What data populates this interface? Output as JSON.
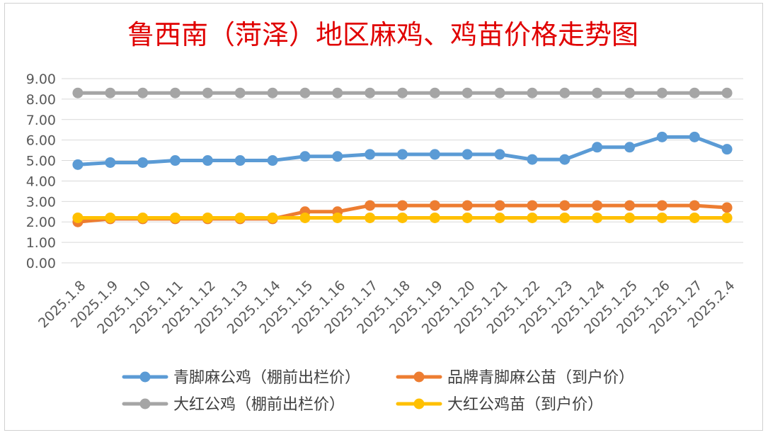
{
  "chart_data": {
    "type": "line",
    "title": "鲁西南（菏泽）地区麻鸡、鸡苗价格走势图",
    "xlabel": "",
    "ylabel": "",
    "ylim": [
      0,
      9
    ],
    "yticks": [
      "0.00",
      "1.00",
      "2.00",
      "3.00",
      "4.00",
      "5.00",
      "6.00",
      "7.00",
      "8.00",
      "9.00"
    ],
    "categories": [
      "2025.1.8",
      "2025.1.9",
      "2025.1.10",
      "2025.1.11",
      "2025.1.12",
      "2025.1.13",
      "2025.1.14",
      "2025.1.15",
      "2025.1.16",
      "2025.1.17",
      "2025.1.18",
      "2025.1.19",
      "2025.1.20",
      "2025.1.21",
      "2025.1.22",
      "2025.1.23",
      "2025.1.24",
      "2025.1.25",
      "2025.1.26",
      "2025.1.27",
      "2025.2.4"
    ],
    "grid": true,
    "legend_position": "bottom",
    "series": [
      {
        "name": "青脚麻公鸡（棚前出栏价）",
        "color": "#5B9BD5",
        "values": [
          4.8,
          4.9,
          4.9,
          5.0,
          5.0,
          5.0,
          5.0,
          5.2,
          5.2,
          5.3,
          5.3,
          5.3,
          5.3,
          5.3,
          5.05,
          5.05,
          5.65,
          5.65,
          6.15,
          6.15,
          5.55
        ]
      },
      {
        "name": "品牌青脚麻公苗（到户价）",
        "color": "#ED7D31",
        "values": [
          2.0,
          2.15,
          2.15,
          2.15,
          2.15,
          2.15,
          2.15,
          2.5,
          2.5,
          2.8,
          2.8,
          2.8,
          2.8,
          2.8,
          2.8,
          2.8,
          2.8,
          2.8,
          2.8,
          2.8,
          2.7
        ]
      },
      {
        "name": "大红公鸡（棚前出栏价）",
        "color": "#A5A5A5",
        "values": [
          8.3,
          8.3,
          8.3,
          8.3,
          8.3,
          8.3,
          8.3,
          8.3,
          8.3,
          8.3,
          8.3,
          8.3,
          8.3,
          8.3,
          8.3,
          8.3,
          8.3,
          8.3,
          8.3,
          8.3,
          8.3
        ]
      },
      {
        "name": "大红公鸡苗（到户价）",
        "color": "#FFC000",
        "values": [
          2.2,
          2.2,
          2.2,
          2.2,
          2.2,
          2.2,
          2.2,
          2.2,
          2.2,
          2.2,
          2.2,
          2.2,
          2.2,
          2.2,
          2.2,
          2.2,
          2.2,
          2.2,
          2.2,
          2.2,
          2.2
        ]
      }
    ],
    "gridline_color": "#d9d9d9"
  }
}
